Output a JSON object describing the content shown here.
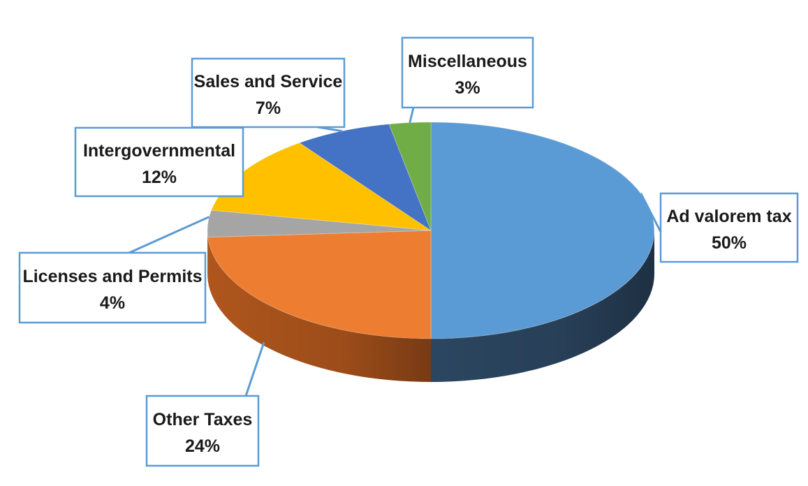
{
  "chart_data": {
    "type": "pie",
    "style": "3d",
    "categories": [
      "Ad valorem tax",
      "Other Taxes",
      "Licenses and Permits",
      "Intergovernmental",
      "Sales and Service",
      "Miscellaneous"
    ],
    "values": [
      50,
      24,
      4,
      12,
      7,
      3
    ],
    "unit": "%",
    "data_labels": [
      "50%",
      "24%",
      "4%",
      "12%",
      "7%",
      "3%"
    ],
    "colors": [
      "#5b9bd5",
      "#ed7d31",
      "#a5a5a5",
      "#ffc000",
      "#4472c4",
      "#70ad47"
    ],
    "side_colors": [
      "#2e4a66",
      "#b85a1e",
      "#7a7a7a",
      "#c79400",
      "#2f5597",
      "#4e7a31"
    ],
    "callout_border": "#5b9bd5",
    "legend": "none"
  }
}
